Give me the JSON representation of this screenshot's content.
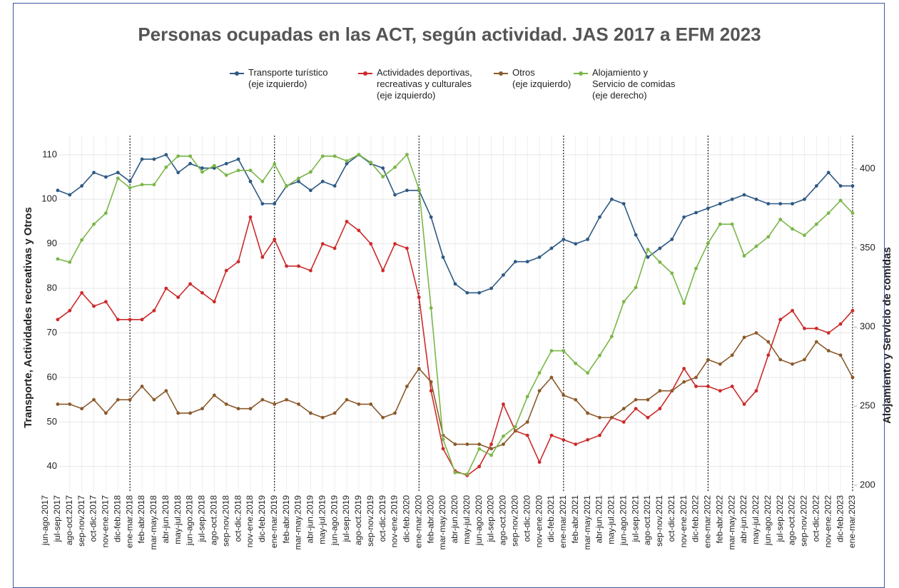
{
  "chart_data": {
    "type": "line",
    "title": "Personas ocupadas en las ACT, según actividad. JAS 2017 a EFM 2023",
    "y_label": "Transporte, Actividades recreativas y Otros",
    "y2_label": "Alojamiento y Servicio de comidas",
    "categories": [
      "jun-ago.2017",
      "jul-sep.2017",
      "ago-oct.2017",
      "sep-nov.2017",
      "oct-dic.2017",
      "nov-ene.2017",
      "dic-feb.2018",
      "ene-mar.2018",
      "feb-abr.2018",
      "mar-may.2018",
      "abr-jun.2018",
      "may-jul.2018",
      "jun-ago.2018",
      "jul-sep.2018",
      "ago-oct.2018",
      "sep-nov.2018",
      "oct-dic.2018",
      "nov-ene.2018",
      "dic-feb.2019",
      "ene-mar.2019",
      "feb-abr.2019",
      "mar-may.2019",
      "abr-jun.2019",
      "may-jul.2019",
      "jun-ago.2019",
      "jul-sep.2019",
      "ago-oct.2019",
      "sep-nov.2019",
      "oct-dic.2019",
      "nov-ene.2019",
      "dic-feb.2020",
      "ene-mar.2020",
      "feb-abr.2020",
      "mar-may.2020",
      "abr-jun.2020",
      "may-jul.2020",
      "jun-ago.2020",
      "jul-sep.2020",
      "ago-oct.2020",
      "sep-nov.2020",
      "oct-dic.2020",
      "nov-ene.2020",
      "dic-feb.2021",
      "ene-mar.2021",
      "feb-abr.2021",
      "mar-may.2021",
      "abr-jun.2021",
      "may-jul.2021",
      "jun-ago.2021",
      "jul-sep.2021",
      "ago-oct.2021",
      "sep-nov.2021",
      "oct-dic.2021",
      "nov-ene.2021",
      "dic-feb.2022",
      "ene-mar.2022",
      "feb-abr.2022",
      "mar-may.2022",
      "abr-jun.2022",
      "may-jul.2022",
      "jun-ago.2022",
      "jul-sep.2022",
      "ago-oct.2022",
      "sep-nov.2022",
      "oct-dic.2022",
      "nov-ene.2022",
      "dic-feb.2023",
      "ene-mar.2023"
    ],
    "series": [
      {
        "name": "Transporte turístico\n(eje izquierdo)",
        "color": "#2e5984",
        "values": [
          null,
          102,
          101,
          103,
          106,
          105,
          106,
          104,
          109,
          109,
          110,
          106,
          108,
          107,
          107,
          108,
          109,
          104,
          99,
          99,
          103,
          104,
          102,
          104,
          103,
          108,
          110,
          108,
          107,
          101,
          102,
          102,
          96,
          87,
          81,
          79,
          79,
          80,
          83,
          86,
          86,
          87,
          89,
          91,
          90,
          91,
          96,
          100,
          99,
          92,
          87,
          89,
          91,
          96,
          97,
          98,
          99,
          100,
          101,
          100,
          99,
          99,
          99,
          100,
          103,
          106,
          103,
          103
        ]
      },
      {
        "name": "Actividades deportivas,\nrecreativas y culturales\n(eje izquierdo)",
        "color": "#cc2a2a",
        "values": [
          null,
          73,
          75,
          79,
          76,
          77,
          73,
          73,
          73,
          75,
          80,
          78,
          81,
          79,
          77,
          84,
          86,
          96,
          87,
          91,
          85,
          85,
          84,
          90,
          89,
          95,
          93,
          90,
          84,
          90,
          89,
          78,
          57,
          44,
          39,
          38,
          40,
          45,
          54,
          48,
          47,
          41,
          47,
          46,
          45,
          46,
          47,
          51,
          50,
          53,
          51,
          53,
          57,
          62,
          58,
          58,
          57,
          58,
          54,
          57,
          65,
          73,
          75,
          71,
          71,
          70,
          72,
          75
        ]
      },
      {
        "name": "Otros\n(eje izquierdo)",
        "color": "#8b5a2b",
        "values": [
          null,
          54,
          54,
          53,
          55,
          52,
          55,
          55,
          58,
          55,
          57,
          52,
          52,
          53,
          56,
          54,
          53,
          53,
          55,
          54,
          55,
          54,
          52,
          51,
          52,
          55,
          54,
          54,
          51,
          52,
          58,
          62,
          59,
          47,
          45,
          45,
          45,
          44,
          45,
          48,
          50,
          57,
          60,
          56,
          55,
          52,
          51,
          51,
          53,
          55,
          55,
          57,
          57,
          59,
          60,
          64,
          63,
          65,
          69,
          70,
          68,
          64,
          63,
          64,
          68,
          66,
          65,
          60
        ]
      },
      {
        "name": "Alojamiento y\nServicio de comidas\n(eje derecho)",
        "color": "#7ab648",
        "axis": "y2",
        "values": [
          null,
          343,
          341,
          355,
          365,
          372,
          394,
          388,
          390,
          390,
          401,
          408,
          408,
          398,
          402,
          396,
          399,
          399,
          392,
          403,
          389,
          394,
          398,
          408,
          408,
          405,
          409,
          404,
          395,
          401,
          409,
          387,
          312,
          229,
          208,
          207,
          223,
          219,
          231,
          237,
          256,
          271,
          285,
          285,
          277,
          271,
          282,
          294,
          316,
          325,
          349,
          341,
          334,
          315,
          337,
          353,
          365,
          365,
          345,
          351,
          357,
          368,
          362,
          358,
          365,
          372,
          380,
          372
        ]
      }
    ],
    "ylim": [
      34.2,
      114.3
    ],
    "yticks": [
      40,
      50,
      60,
      70,
      80,
      90,
      100,
      110
    ],
    "y2lim": [
      195.5,
      421
    ],
    "y2ticks": [
      200,
      250,
      300,
      350,
      400
    ],
    "grid": true
  }
}
